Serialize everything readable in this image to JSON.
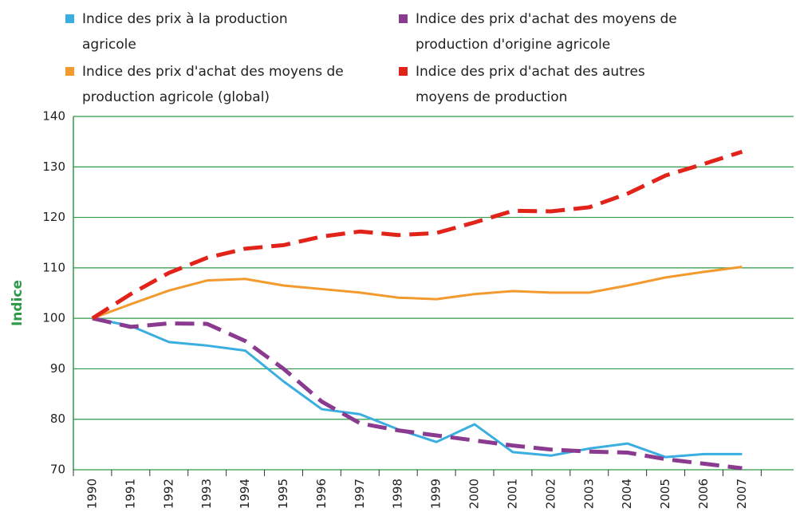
{
  "chart_data": {
    "type": "line",
    "y_label": "Indice",
    "categories": [
      "1990",
      "1991",
      "1992",
      "1993",
      "1994",
      "1995",
      "1996",
      "1997",
      "1998",
      "1999",
      "2000",
      "2001",
      "2002",
      "2003",
      "2004",
      "2005",
      "2006",
      "2007"
    ],
    "series": [
      {
        "name": "Indice des prix à la production agricole",
        "color": "#3aaee0",
        "dashed": false,
        "values": [
          100,
          98.5,
          95.3,
          94.6,
          93.6,
          87.5,
          82,
          81,
          78,
          75.5,
          79,
          73.5,
          72.8,
          74.2,
          75.2,
          72.5,
          73.1,
          73.1
        ]
      },
      {
        "name": "Indice des prix d'achat des moyens de production d'origine agricole",
        "color": "#8a3a8f",
        "dashed": true,
        "values": [
          100,
          98.3,
          99,
          98.9,
          95.5,
          90,
          83.5,
          79.2,
          77.8,
          76.8,
          75.8,
          74.8,
          74,
          73.6,
          73.4,
          72.1,
          71.2,
          70.3
        ]
      },
      {
        "name": "Indice des prix d'achat des moyens de production agricole (global)",
        "color": "#f39a2e",
        "dashed": false,
        "values": [
          100,
          102.8,
          105.5,
          107.5,
          107.8,
          106.5,
          105.8,
          105.1,
          104.1,
          103.8,
          104.8,
          105.4,
          105.1,
          105.1,
          106.5,
          108.1,
          109.2,
          110.2
        ]
      },
      {
        "name": "Indice des prix d'achat des autres moyens de production",
        "color": "#e2231a",
        "dashed": true,
        "values": [
          100,
          104.8,
          109,
          112,
          113.8,
          114.5,
          116.2,
          117.2,
          116.5,
          116.9,
          119,
          121.3,
          121.2,
          122,
          124.7,
          128.3,
          130.6,
          133
        ]
      }
    ],
    "ylim": [
      70,
      140
    ],
    "yticks": [
      70,
      80,
      90,
      100,
      110,
      120,
      130,
      140
    ],
    "grid": true,
    "grid_color": "#2e9a47"
  }
}
